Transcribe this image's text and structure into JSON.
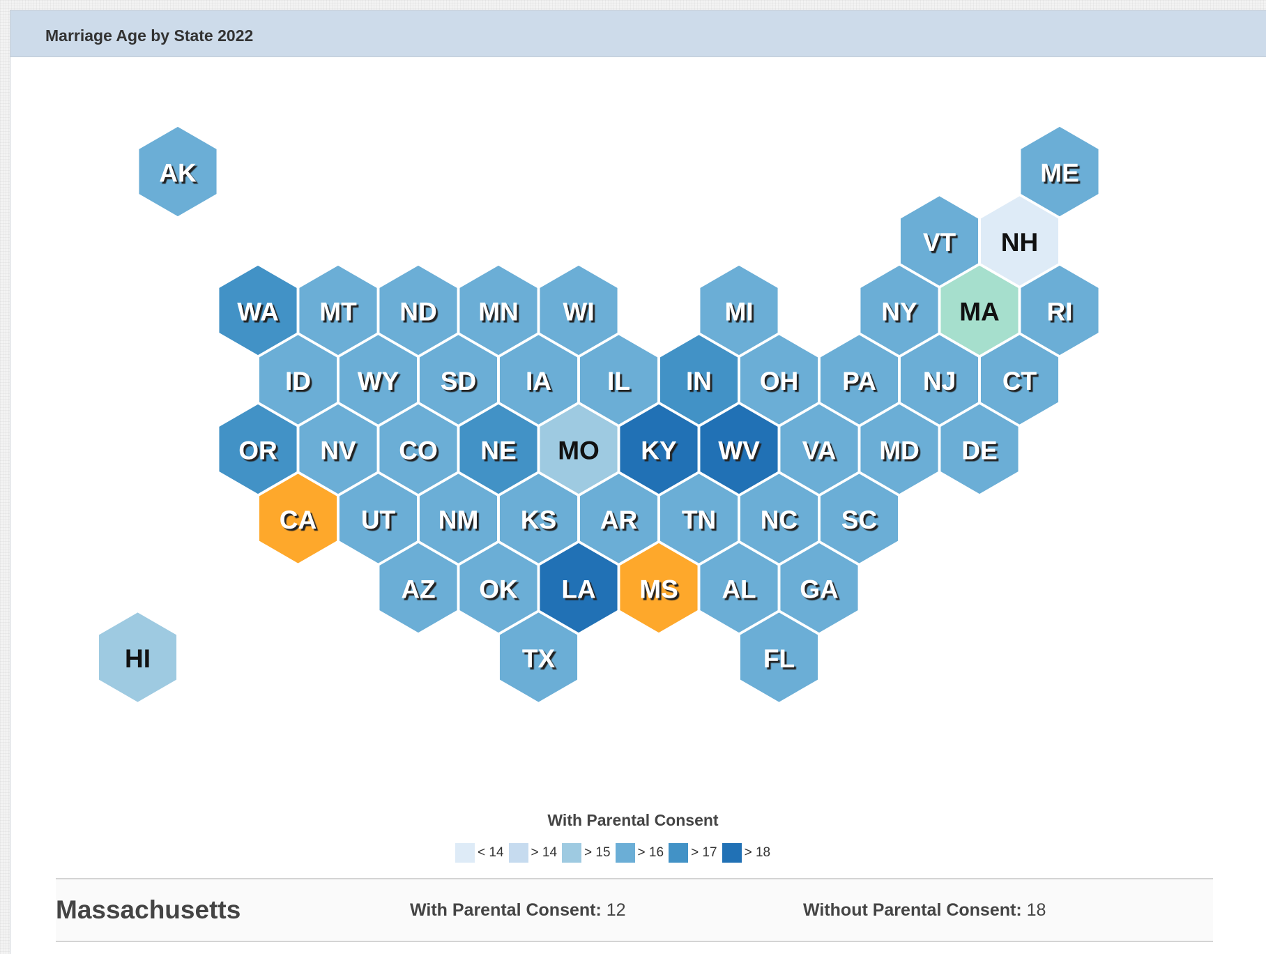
{
  "panel": {
    "title": "Marriage Age by State 2022"
  },
  "map": {
    "states": [
      {
        "abbr": "AK",
        "row": 0,
        "col": 1,
        "color": "#6baed6"
      },
      {
        "abbr": "ME",
        "row": 0,
        "col": 12,
        "color": "#6baed6"
      },
      {
        "abbr": "VT",
        "row": 1,
        "col": 10.5,
        "color": "#6baed6"
      },
      {
        "abbr": "NH",
        "row": 1,
        "col": 11.5,
        "color": "#deebf7"
      },
      {
        "abbr": "WA",
        "row": 2,
        "col": 2,
        "color": "#4292c6"
      },
      {
        "abbr": "MT",
        "row": 2,
        "col": 3,
        "color": "#6baed6"
      },
      {
        "abbr": "ND",
        "row": 2,
        "col": 4,
        "color": "#6baed6"
      },
      {
        "abbr": "MN",
        "row": 2,
        "col": 5,
        "color": "#6baed6"
      },
      {
        "abbr": "WI",
        "row": 2,
        "col": 6,
        "color": "#6baed6"
      },
      {
        "abbr": "MI",
        "row": 2,
        "col": 8,
        "color": "#6baed6"
      },
      {
        "abbr": "NY",
        "row": 2,
        "col": 10,
        "color": "#6baed6"
      },
      {
        "abbr": "MA",
        "row": 2,
        "col": 11,
        "color": "#a6dfcd"
      },
      {
        "abbr": "RI",
        "row": 2,
        "col": 12,
        "color": "#6baed6"
      },
      {
        "abbr": "ID",
        "row": 3,
        "col": 2.5,
        "color": "#6baed6"
      },
      {
        "abbr": "WY",
        "row": 3,
        "col": 3.5,
        "color": "#6baed6"
      },
      {
        "abbr": "SD",
        "row": 3,
        "col": 4.5,
        "color": "#6baed6"
      },
      {
        "abbr": "IA",
        "row": 3,
        "col": 5.5,
        "color": "#6baed6"
      },
      {
        "abbr": "IL",
        "row": 3,
        "col": 6.5,
        "color": "#6baed6"
      },
      {
        "abbr": "IN",
        "row": 3,
        "col": 7.5,
        "color": "#4292c6"
      },
      {
        "abbr": "OH",
        "row": 3,
        "col": 8.5,
        "color": "#6baed6"
      },
      {
        "abbr": "PA",
        "row": 3,
        "col": 9.5,
        "color": "#6baed6"
      },
      {
        "abbr": "NJ",
        "row": 3,
        "col": 10.5,
        "color": "#6baed6"
      },
      {
        "abbr": "CT",
        "row": 3,
        "col": 11.5,
        "color": "#6baed6"
      },
      {
        "abbr": "OR",
        "row": 4,
        "col": 2,
        "color": "#4292c6"
      },
      {
        "abbr": "NV",
        "row": 4,
        "col": 3,
        "color": "#6baed6"
      },
      {
        "abbr": "CO",
        "row": 4,
        "col": 4,
        "color": "#6baed6"
      },
      {
        "abbr": "NE",
        "row": 4,
        "col": 5,
        "color": "#4292c6"
      },
      {
        "abbr": "MO",
        "row": 4,
        "col": 6,
        "color": "#9ecae1"
      },
      {
        "abbr": "KY",
        "row": 4,
        "col": 7,
        "color": "#2171b5"
      },
      {
        "abbr": "WV",
        "row": 4,
        "col": 8,
        "color": "#2171b5"
      },
      {
        "abbr": "VA",
        "row": 4,
        "col": 9,
        "color": "#6baed6"
      },
      {
        "abbr": "MD",
        "row": 4,
        "col": 10,
        "color": "#6baed6"
      },
      {
        "abbr": "DE",
        "row": 4,
        "col": 11,
        "color": "#6baed6"
      },
      {
        "abbr": "CA",
        "row": 5,
        "col": 2.5,
        "color": "#fea82b"
      },
      {
        "abbr": "UT",
        "row": 5,
        "col": 3.5,
        "color": "#6baed6"
      },
      {
        "abbr": "NM",
        "row": 5,
        "col": 4.5,
        "color": "#6baed6"
      },
      {
        "abbr": "KS",
        "row": 5,
        "col": 5.5,
        "color": "#6baed6"
      },
      {
        "abbr": "AR",
        "row": 5,
        "col": 6.5,
        "color": "#6baed6"
      },
      {
        "abbr": "TN",
        "row": 5,
        "col": 7.5,
        "color": "#6baed6"
      },
      {
        "abbr": "NC",
        "row": 5,
        "col": 8.5,
        "color": "#6baed6"
      },
      {
        "abbr": "SC",
        "row": 5,
        "col": 9.5,
        "color": "#6baed6"
      },
      {
        "abbr": "AZ",
        "row": 6,
        "col": 4,
        "color": "#6baed6"
      },
      {
        "abbr": "OK",
        "row": 6,
        "col": 5,
        "color": "#6baed6"
      },
      {
        "abbr": "LA",
        "row": 6,
        "col": 6,
        "color": "#2171b5"
      },
      {
        "abbr": "MS",
        "row": 6,
        "col": 7,
        "color": "#fea82b"
      },
      {
        "abbr": "AL",
        "row": 6,
        "col": 8,
        "color": "#6baed6"
      },
      {
        "abbr": "GA",
        "row": 6,
        "col": 9,
        "color": "#6baed6"
      },
      {
        "abbr": "HI",
        "row": 7,
        "col": 0.5,
        "color": "#9ecae1"
      },
      {
        "abbr": "TX",
        "row": 7,
        "col": 5.5,
        "color": "#6baed6"
      },
      {
        "abbr": "FL",
        "row": 7,
        "col": 8.5,
        "color": "#6baed6"
      }
    ]
  },
  "legend": {
    "title": "With Parental Consent",
    "items": [
      {
        "label": "< 14",
        "color": "#deebf7"
      },
      {
        "label": "> 14",
        "color": "#c6dbef"
      },
      {
        "label": "> 15",
        "color": "#9ecae1"
      },
      {
        "label": "> 16",
        "color": "#6baed6"
      },
      {
        "label": "> 17",
        "color": "#4292c6"
      },
      {
        "label": "> 18",
        "color": "#2171b5"
      }
    ]
  },
  "info": {
    "state_name": "Massachusetts",
    "with_label": "With Parental Consent:",
    "with_value": "12",
    "without_label": "Without Parental Consent:",
    "without_value": "18"
  }
}
